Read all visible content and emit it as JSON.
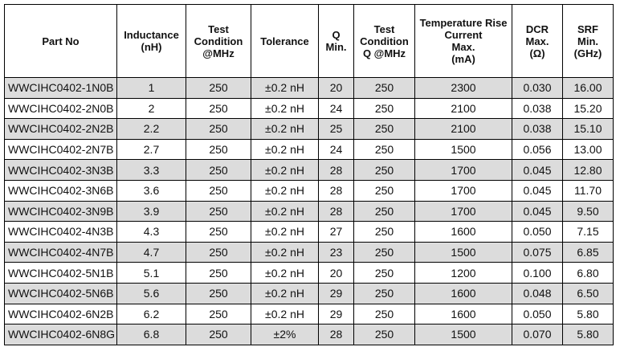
{
  "table": {
    "header": [
      [
        "Part No"
      ],
      [
        "Inductance",
        "(nH)"
      ],
      [
        "Test",
        "Condition",
        "@MHz"
      ],
      [
        "Tolerance"
      ],
      [
        "Q",
        "Min."
      ],
      [
        "Test",
        "Condition",
        "Q @MHz"
      ],
      [
        "Temperature Rise",
        "Current",
        "Max.",
        "(mA)"
      ],
      [
        "DCR",
        "Max.",
        "(Ω)"
      ],
      [
        "SRF",
        "Min.",
        "(GHz)"
      ]
    ],
    "rows": [
      [
        "WWCIHC0402-1N0B",
        "1",
        "250",
        "±0.2 nH",
        "20",
        "250",
        "2300",
        "0.030",
        "16.00"
      ],
      [
        "WWCIHC0402-2N0B",
        "2",
        "250",
        "±0.2 nH",
        "24",
        "250",
        "2100",
        "0.038",
        "15.20"
      ],
      [
        "WWCIHC0402-2N2B",
        "2.2",
        "250",
        "±0.2 nH",
        "25",
        "250",
        "2100",
        "0.038",
        "15.10"
      ],
      [
        "WWCIHC0402-2N7B",
        "2.7",
        "250",
        "±0.2 nH",
        "24",
        "250",
        "1500",
        "0.056",
        "13.00"
      ],
      [
        "WWCIHC0402-3N3B",
        "3.3",
        "250",
        "±0.2 nH",
        "28",
        "250",
        "1700",
        "0.045",
        "12.80"
      ],
      [
        "WWCIHC0402-3N6B",
        "3.6",
        "250",
        "±0.2 nH",
        "28",
        "250",
        "1700",
        "0.045",
        "11.70"
      ],
      [
        "WWCIHC0402-3N9B",
        "3.9",
        "250",
        "±0.2 nH",
        "28",
        "250",
        "1700",
        "0.045",
        "9.50"
      ],
      [
        "WWCIHC0402-4N3B",
        "4.3",
        "250",
        "±0.2 nH",
        "27",
        "250",
        "1600",
        "0.050",
        "7.15"
      ],
      [
        "WWCIHC0402-4N7B",
        "4.7",
        "250",
        "±0.2 nH",
        "23",
        "250",
        "1500",
        "0.075",
        "6.85"
      ],
      [
        "WWCIHC0402-5N1B",
        "5.1",
        "250",
        "±0.2 nH",
        "20",
        "250",
        "1200",
        "0.100",
        "6.80"
      ],
      [
        "WWCIHC0402-5N6B",
        "5.6",
        "250",
        "±0.2 nH",
        "29",
        "250",
        "1600",
        "0.048",
        "6.50"
      ],
      [
        "WWCIHC0402-6N2B",
        "6.2",
        "250",
        "±0.2 nH",
        "29",
        "250",
        "1600",
        "0.050",
        "5.80"
      ],
      [
        "WWCIHC0402-6N8G",
        "6.8",
        "250",
        "±2%",
        "28",
        "250",
        "1500",
        "0.070",
        "5.80"
      ]
    ]
  }
}
